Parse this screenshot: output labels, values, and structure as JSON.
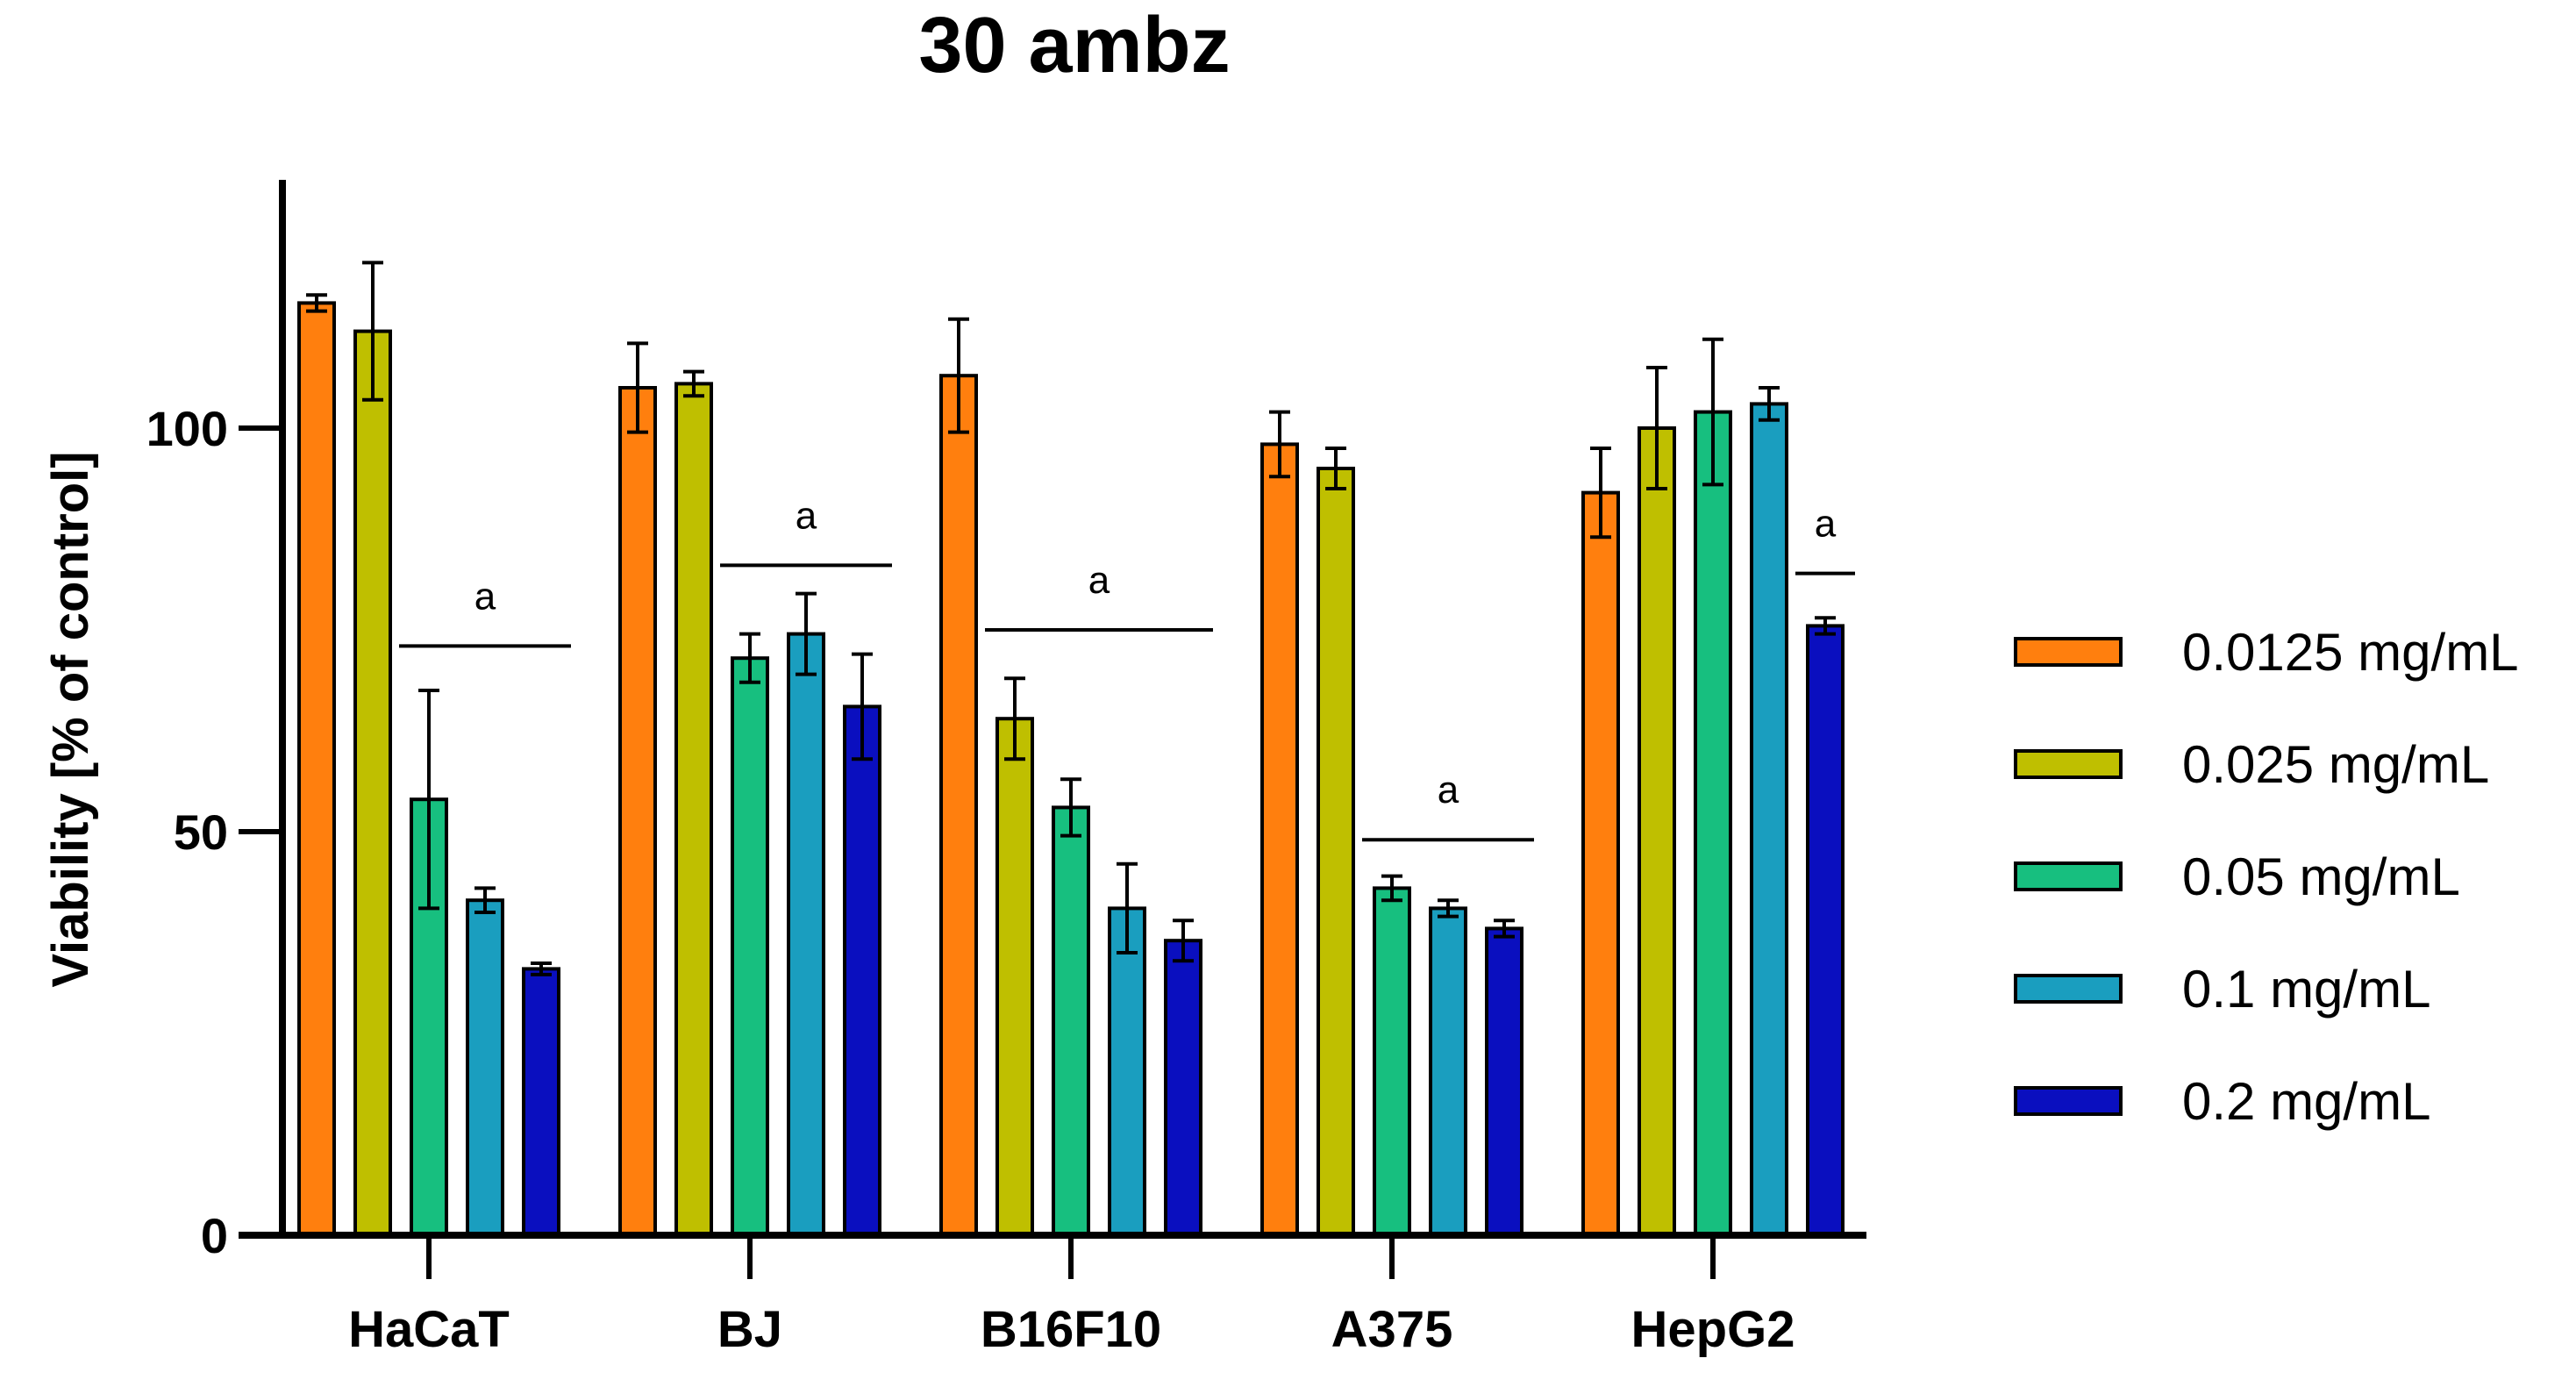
{
  "chart_data": {
    "type": "bar",
    "title": "30 ambz",
    "xlabel": "",
    "ylabel": "Viability [% of control]",
    "ylim": [
      0,
      130
    ],
    "yticks": [
      0,
      50,
      100
    ],
    "grid": false,
    "legend_position": "right",
    "categories": [
      "HaCaT",
      "BJ",
      "B16F10",
      "A375",
      "HepG2"
    ],
    "series": [
      {
        "name": "0.0125 mg/mL",
        "color": "#FF7F0E",
        "values": [
          115.5,
          105,
          106.5,
          98,
          92
        ],
        "errors": [
          1,
          5.5,
          7,
          4,
          5.5
        ]
      },
      {
        "name": "0.025 mg/mL",
        "color": "#BFBF00",
        "values": [
          112,
          105.5,
          64,
          95,
          100
        ],
        "errors": [
          8.5,
          1.5,
          5,
          2.5,
          7.5
        ]
      },
      {
        "name": "0.05 mg/mL",
        "color": "#17BF7F",
        "values": [
          54,
          71.5,
          53,
          43,
          102
        ],
        "errors": [
          13.5,
          3,
          3.5,
          1.5,
          9
        ]
      },
      {
        "name": "0.1 mg/mL",
        "color": "#1A9EBF",
        "values": [
          41.5,
          74.5,
          40.5,
          40.5,
          103
        ],
        "errors": [
          1.5,
          5,
          5.5,
          1,
          2
        ]
      },
      {
        "name": "0.2 mg/mL",
        "color": "#0A0FBF",
        "values": [
          33,
          65.5,
          36.5,
          38,
          75.5
        ],
        "errors": [
          0.7,
          6.5,
          2.5,
          1,
          1
        ]
      }
    ],
    "annotations": [
      {
        "category": "HaCaT",
        "text": "a",
        "series_range": [
          2,
          4
        ],
        "y": 73
      },
      {
        "category": "BJ",
        "text": "a",
        "series_range": [
          2,
          4
        ],
        "y": 83
      },
      {
        "category": "B16F10",
        "text": "a",
        "series_range": [
          1,
          4
        ],
        "y": 75
      },
      {
        "category": "A375",
        "text": "a",
        "series_range": [
          2,
          4
        ],
        "y": 49
      },
      {
        "category": "HepG2",
        "text": "a",
        "series_range": [
          4,
          4
        ],
        "y": 82
      }
    ]
  }
}
